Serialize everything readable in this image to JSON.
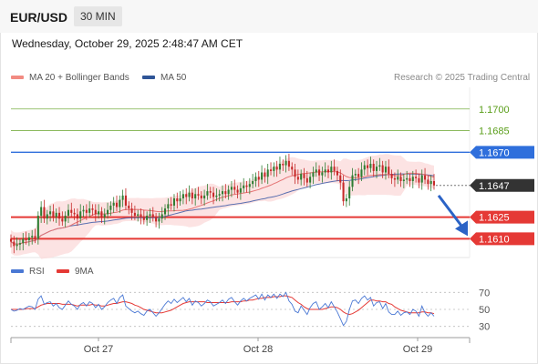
{
  "header": {
    "symbol": "EUR/USD",
    "timeframe": "30 MIN"
  },
  "datetime": "Wednesday, October 29, 2025 2:48:47 AM CET",
  "legend": {
    "ma20_label": "MA 20 + Bollinger Bands",
    "ma50_label": "MA 50",
    "rsi_label": "RSI",
    "ma9_label": "9MA"
  },
  "credit": "Research © 2025 Trading Central",
  "colors": {
    "bullish": "#2e7d32",
    "bearish": "#c62828",
    "target": "#5a9e1a",
    "resistance": "#2f6fdc",
    "support": "#e53935",
    "current": "#333333",
    "ma20": "#e57373",
    "ma50": "#5a6fb0",
    "bands": "#fbdada",
    "rsi": "#4a78d4",
    "rsi_ma": "#e53935",
    "arrow": "#2b63c6"
  },
  "chart_data": {
    "type": "candlestick",
    "x_labels": [
      "Oct 27",
      "Oct 28",
      "Oct 29"
    ],
    "ylim": [
      1.1597,
      1.1715
    ],
    "levels": [
      {
        "value": 1.17,
        "label": "1.1700",
        "kind": "target"
      },
      {
        "value": 1.1685,
        "label": "1.1685",
        "kind": "target"
      },
      {
        "value": 1.167,
        "label": "1.1670",
        "kind": "resistance"
      },
      {
        "value": 1.1647,
        "label": "1.1647",
        "kind": "current"
      },
      {
        "value": 1.1625,
        "label": "1.1625",
        "kind": "support"
      },
      {
        "value": 1.161,
        "label": "1.1610",
        "kind": "support"
      }
    ],
    "forecast": {
      "from": 1.164,
      "to": 1.161,
      "direction": "down"
    },
    "closes": [
      1.1608,
      1.1605,
      1.1606,
      1.1607,
      1.161,
      1.1609,
      1.1611,
      1.1612,
      1.161,
      1.1626,
      1.1632,
      1.1624,
      1.1627,
      1.1629,
      1.1625,
      1.1628,
      1.1624,
      1.1622,
      1.1626,
      1.163,
      1.1628,
      1.1627,
      1.1624,
      1.1629,
      1.163,
      1.1628,
      1.1631,
      1.163,
      1.1627,
      1.1629,
      1.1625,
      1.1627,
      1.163,
      1.1633,
      1.1635,
      1.1632,
      1.1637,
      1.164,
      1.1633,
      1.1631,
      1.1628,
      1.1626,
      1.1627,
      1.1625,
      1.1623,
      1.1626,
      1.1627,
      1.1625,
      1.1622,
      1.1624,
      1.1627,
      1.1631,
      1.1634,
      1.1633,
      1.1638,
      1.1636,
      1.1638,
      1.1641,
      1.1639,
      1.1642,
      1.1638,
      1.1641,
      1.164,
      1.1638,
      1.164,
      1.1643,
      1.1642,
      1.1639,
      1.164,
      1.1641,
      1.1643,
      1.1641,
      1.1644,
      1.1646,
      1.1644,
      1.1642,
      1.1645,
      1.1647,
      1.1646,
      1.1648,
      1.165,
      1.1653,
      1.1651,
      1.1656,
      1.1653,
      1.1658,
      1.1657,
      1.166,
      1.1658,
      1.1662,
      1.1661,
      1.1664,
      1.166,
      1.1658,
      1.1653,
      1.1651,
      1.1655,
      1.1652,
      1.1649,
      1.1653,
      1.1656,
      1.1658,
      1.1654,
      1.1656,
      1.1658,
      1.1656,
      1.166,
      1.1657,
      1.1654,
      1.1649,
      1.1636,
      1.1638,
      1.1646,
      1.1654,
      1.1655,
      1.1653,
      1.1658,
      1.1661,
      1.1659,
      1.1662,
      1.1657,
      1.166,
      1.1661,
      1.1656,
      1.166,
      1.1655,
      1.1652,
      1.1651,
      1.1653,
      1.165,
      1.1651,
      1.1652,
      1.165,
      1.1653,
      1.1652,
      1.1649,
      1.1654,
      1.1651,
      1.1648,
      1.165,
      1.1647
    ],
    "rsi_ylim": [
      20,
      80
    ],
    "rsi_ticks": [
      70,
      50,
      30
    ],
    "rsi": [
      50,
      48,
      49,
      51,
      50,
      52,
      54,
      53,
      50,
      62,
      66,
      56,
      58,
      59,
      54,
      57,
      52,
      50,
      55,
      60,
      56,
      54,
      50,
      56,
      58,
      54,
      59,
      57,
      52,
      56,
      50,
      53,
      58,
      61,
      63,
      57,
      64,
      67,
      54,
      51,
      48,
      46,
      48,
      45,
      43,
      48,
      50,
      46,
      42,
      46,
      51,
      56,
      60,
      57,
      62,
      58,
      61,
      64,
      59,
      63,
      55,
      60,
      58,
      54,
      57,
      61,
      59,
      54,
      56,
      58,
      61,
      57,
      62,
      64,
      59,
      55,
      60,
      63,
      60,
      63,
      65,
      67,
      62,
      68,
      61,
      67,
      64,
      68,
      63,
      68,
      65,
      70,
      60,
      56,
      48,
      46,
      54,
      49,
      44,
      52,
      57,
      59,
      50,
      53,
      57,
      52,
      59,
      53,
      47,
      39,
      31,
      36,
      50,
      60,
      61,
      57,
      63,
      66,
      61,
      64,
      54,
      58,
      59,
      51,
      57,
      47,
      44,
      44,
      48,
      43,
      46,
      47,
      44,
      50,
      48,
      42,
      54,
      46,
      42,
      46,
      42
    ],
    "rsi_ma": [
      50,
      50,
      50,
      50,
      50,
      51,
      51,
      51,
      51,
      53,
      55,
      56,
      57,
      57,
      57,
      57,
      57,
      56,
      56,
      56,
      56,
      55,
      54,
      55,
      55,
      55,
      55,
      56,
      55,
      55,
      54,
      54,
      55,
      56,
      57,
      57,
      58,
      59,
      59,
      58,
      57,
      55,
      54,
      52,
      50,
      49,
      48,
      47,
      46,
      46,
      46,
      47,
      48,
      49,
      51,
      53,
      55,
      57,
      58,
      59,
      59,
      59,
      59,
      59,
      59,
      58,
      58,
      58,
      58,
      58,
      58,
      58,
      58,
      59,
      59,
      59,
      59,
      60,
      60,
      61,
      61,
      62,
      63,
      63,
      64,
      64,
      64,
      65,
      65,
      65,
      66,
      66,
      65,
      64,
      61,
      58,
      56,
      53,
      51,
      50,
      50,
      50,
      50,
      50,
      51,
      52,
      53,
      53,
      52,
      50,
      47,
      45,
      44,
      45,
      47,
      49,
      52,
      55,
      58,
      61,
      61,
      60,
      60,
      59,
      59,
      57,
      56,
      53,
      51,
      49,
      48,
      47,
      46,
      46,
      46,
      46,
      47,
      47,
      46,
      46,
      45
    ]
  }
}
